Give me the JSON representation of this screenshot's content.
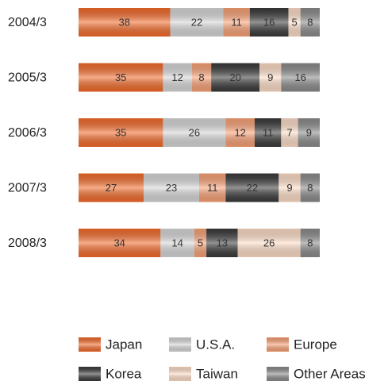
{
  "chart_data": {
    "type": "bar",
    "orientation": "horizontal",
    "stacked": true,
    "categories": [
      "2004/3",
      "2005/3",
      "2006/3",
      "2007/3",
      "2008/3"
    ],
    "xlim": [
      0,
      100
    ],
    "legend": "bottom",
    "series": [
      {
        "name": "Japan",
        "color": "#f26a2a",
        "values": [
          38,
          35,
          35,
          27,
          34
        ]
      },
      {
        "name": "U.S.A.",
        "color": "#d6d6d6",
        "values": [
          22,
          12,
          26,
          23,
          14
        ]
      },
      {
        "name": "Europe",
        "color": "#f8a074",
        "values": [
          11,
          8,
          12,
          11,
          5
        ]
      },
      {
        "name": "Korea",
        "color": "#3a3a3a",
        "values": [
          16,
          20,
          11,
          22,
          13
        ]
      },
      {
        "name": "Taiwan",
        "color": "#fddcc6",
        "values": [
          5,
          9,
          7,
          9,
          26
        ]
      },
      {
        "name": "Other Areas",
        "color": "#8a8a8a",
        "values": [
          8,
          16,
          9,
          8,
          8
        ]
      }
    ]
  }
}
